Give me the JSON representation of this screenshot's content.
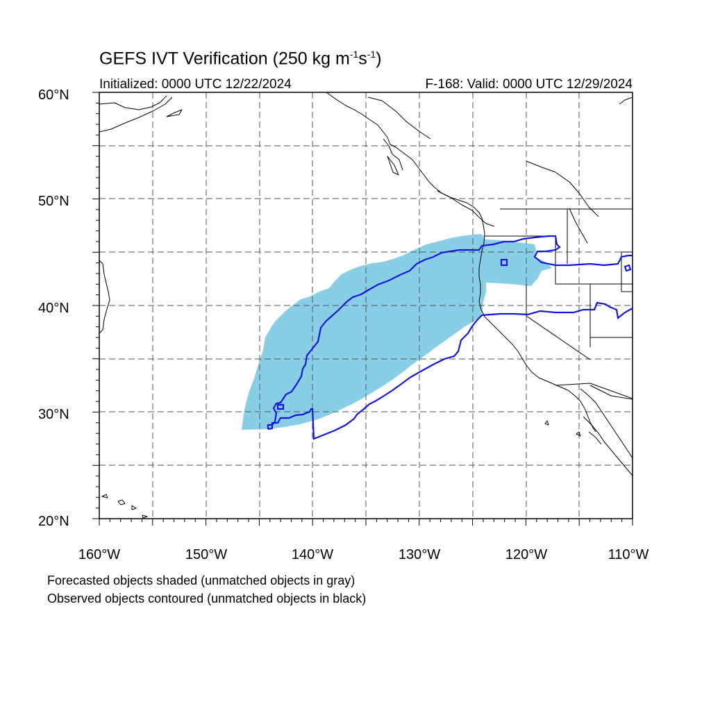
{
  "title": {
    "main": "GEFS IVT Verification (250 kg m",
    "exp1": "-1",
    "mid": "s",
    "exp2": "-1",
    "end": ")"
  },
  "init_text": "Initialized: 0000 UTC 12/22/2024",
  "valid_text": "F-168: Valid: 0000 UTC 12/29/2024",
  "map": {
    "lon_range": [
      -160,
      -110
    ],
    "lat_range": [
      20,
      60
    ],
    "lat_labels": [
      "60°N",
      "50°N",
      "40°N",
      "30°N",
      "20°N"
    ],
    "lon_labels": [
      "160°W",
      "150°W",
      "140°W",
      "130°W",
      "120°W",
      "110°W"
    ],
    "grid": "dashed every 5 degrees",
    "colors": {
      "forecast_fill": "#87CEE6",
      "observed_contour": "#1515E0",
      "coastline": "#000000",
      "grid": "#555555"
    }
  },
  "legend": {
    "line1": "Forecasted objects shaded (unmatched objects in gray)",
    "line2": "Observed objects contoured (unmatched objects in black)"
  }
}
